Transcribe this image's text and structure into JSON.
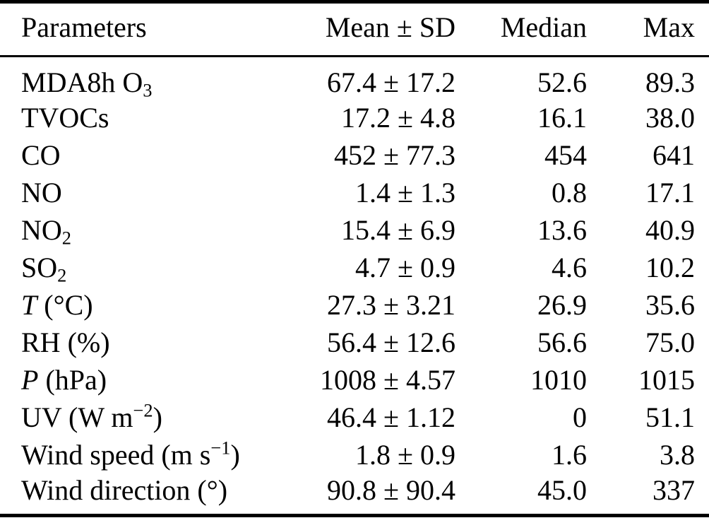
{
  "colors": {
    "background": "#ffffff",
    "text": "#000000",
    "rule": "#000000"
  },
  "table": {
    "columns": [
      {
        "label": "Parameters"
      },
      {
        "label": "Mean ± SD"
      },
      {
        "label": "Median"
      },
      {
        "label": "Max"
      }
    ],
    "rows": [
      {
        "parameter": [
          {
            "t": "MDA8h O"
          },
          {
            "t": "3",
            "s": "sub"
          }
        ],
        "parameter_text": "MDA8h O3",
        "mean_sd": "67.4 ± 17.2",
        "median": "52.6",
        "max": "89.3"
      },
      {
        "parameter": [
          {
            "t": "TVOCs"
          }
        ],
        "parameter_text": "TVOCs",
        "mean_sd": "17.2 ± 4.8",
        "median": "16.1",
        "max": "38.0"
      },
      {
        "parameter": [
          {
            "t": "CO"
          }
        ],
        "parameter_text": "CO",
        "mean_sd": "452 ± 77.3",
        "median": "454",
        "max": "641"
      },
      {
        "parameter": [
          {
            "t": "NO"
          }
        ],
        "parameter_text": "NO",
        "mean_sd": "1.4 ± 1.3",
        "median": "0.8",
        "max": "17.1"
      },
      {
        "parameter": [
          {
            "t": "NO"
          },
          {
            "t": "2",
            "s": "sub"
          }
        ],
        "parameter_text": "NO2",
        "mean_sd": "15.4 ± 6.9",
        "median": "13.6",
        "max": "40.9"
      },
      {
        "parameter": [
          {
            "t": "SO"
          },
          {
            "t": "2",
            "s": "sub"
          }
        ],
        "parameter_text": "SO2",
        "mean_sd": "4.7 ± 0.9",
        "median": "4.6",
        "max": "10.2"
      },
      {
        "parameter": [
          {
            "t": "T",
            "s": "i"
          },
          {
            "t": " (°C)"
          }
        ],
        "parameter_text": "T (°C)",
        "mean_sd": "27.3 ± 3.21",
        "median": "26.9",
        "max": "35.6"
      },
      {
        "parameter": [
          {
            "t": "RH (%)"
          }
        ],
        "parameter_text": "RH (%)",
        "mean_sd": "56.4 ± 12.6",
        "median": "56.6",
        "max": "75.0"
      },
      {
        "parameter": [
          {
            "t": "P",
            "s": "i"
          },
          {
            "t": " (hPa)"
          }
        ],
        "parameter_text": "P (hPa)",
        "mean_sd": "1008 ± 4.57",
        "median": "1010",
        "max": "1015"
      },
      {
        "parameter": [
          {
            "t": "UV (W m"
          },
          {
            "t": "−2",
            "s": "sup"
          },
          {
            "t": ")"
          }
        ],
        "parameter_text": "UV (W m−2)",
        "mean_sd": "46.4 ± 1.12",
        "median": "0",
        "max": "51.1"
      },
      {
        "parameter": [
          {
            "t": "Wind speed (m s"
          },
          {
            "t": "−1",
            "s": "sup"
          },
          {
            "t": ")"
          }
        ],
        "parameter_text": "Wind speed (m s−1)",
        "mean_sd": "1.8 ± 0.9",
        "median": "1.6",
        "max": "3.8"
      },
      {
        "parameter": [
          {
            "t": "Wind direction (°)"
          }
        ],
        "parameter_text": "Wind direction (°)",
        "mean_sd": "90.8 ± 90.4",
        "median": "45.0",
        "max": "337"
      }
    ]
  }
}
